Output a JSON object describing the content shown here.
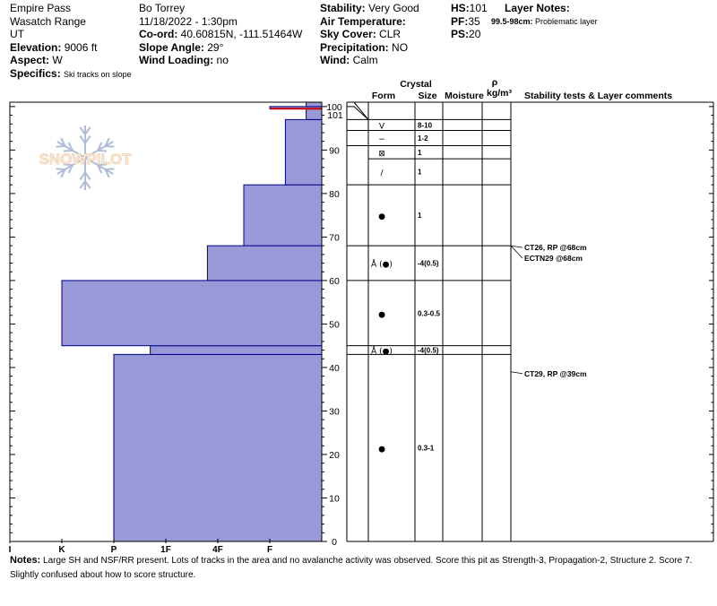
{
  "header": {
    "location": "Empire Pass",
    "range": "Wasatch Range",
    "state": "UT",
    "elevation_label": "Elevation:",
    "elevation": "9006 ft",
    "aspect_label": "Aspect:",
    "aspect": "W",
    "specifics_label": "Specifics:",
    "specifics": "Ski tracks on slope",
    "observer": "Bo Torrey",
    "datetime": "11/18/2022 - 1:30pm",
    "coord_label": "Co-ord:",
    "coord": "40.60815N, -111.51464W",
    "slope_label": "Slope Angle:",
    "slope": "29°",
    "wind_loading_label": "Wind Loading:",
    "wind_loading": "no",
    "stability_label": "Stability:",
    "stability": "Very Good",
    "air_temp_label": "Air Temperature:",
    "air_temp": "",
    "sky_label": "Sky Cover:",
    "sky": "CLR",
    "precip_label": "Precipitation:",
    "precip": "NO",
    "wind_label": "Wind:",
    "wind": "Calm",
    "hs_label": "HS:",
    "hs": "101",
    "pf_label": "PF:",
    "pf": "35",
    "ps_label": "PS:",
    "ps": "20",
    "layer_notes_label": "Layer Notes:",
    "layer_note_range": "99.5-98cm:",
    "layer_note_text": "Problematic layer"
  },
  "logo_text": "SNOWPILOT",
  "columns": {
    "crystal": "Crystal",
    "form": "Form",
    "size": "Size",
    "moisture": "Moisture",
    "rho": "ρ",
    "density_unit": "kg/m³",
    "comments": "Stability tests & Layer comments"
  },
  "notes": {
    "label": "Notes:",
    "text": "Large SH and NSF/RR present. Lots of tracks in the area and no avalanche activity was observed. Score this pit as Strength-3, Propagation-2, Structure 2. Score 7. Slightly confused about how to score structure."
  },
  "chart_data": {
    "type": "bar",
    "orientation": "horizontal",
    "x_categories": [
      "I",
      "K",
      "P",
      "1F",
      "4F",
      "F"
    ],
    "y_ticks": [
      0,
      10,
      20,
      30,
      40,
      50,
      60,
      70,
      80,
      90,
      100
    ],
    "ylim": [
      0,
      101
    ],
    "hardness_units": "hand hardness index (F=1, 4F=2, 1F=3, P=4, K=5, I=6)",
    "layers": [
      {
        "bottom": 0,
        "top": 43,
        "hardness": 4
      },
      {
        "bottom": 43,
        "top": 45,
        "hardness": 3.3
      },
      {
        "bottom": 45,
        "top": 60,
        "hardness": 5
      },
      {
        "bottom": 60,
        "top": 68,
        "hardness": 2.2
      },
      {
        "bottom": 68,
        "top": 82,
        "hardness": 1.5
      },
      {
        "bottom": 82,
        "top": 97,
        "hardness": 0.7
      },
      {
        "bottom": 97,
        "top": 99.5,
        "hardness": 0.3
      },
      {
        "bottom": 99.5,
        "top": 100,
        "hardness": 1
      },
      {
        "bottom": 100,
        "top": 101,
        "hardness": 0.3
      }
    ],
    "marker_layer": 99.5,
    "top_label": "101",
    "boundaries": [
      0,
      43,
      45,
      60,
      68,
      82,
      91,
      94.5,
      97,
      100,
      101
    ],
    "profile_layers": [
      {
        "bottom": 94.5,
        "top": 97,
        "form": "V",
        "size": "8-10"
      },
      {
        "bottom": 91,
        "top": 94.5,
        "form": "−",
        "size": "1-2"
      },
      {
        "bottom": 88,
        "top": 91,
        "form": "⊠",
        "size": "1"
      },
      {
        "bottom": 82,
        "top": 88,
        "form": "/",
        "size": "1"
      },
      {
        "bottom": 68,
        "top": 82,
        "form": "●",
        "size": "1"
      },
      {
        "bottom": 60,
        "top": 68,
        "form": "Å (●)",
        "size": "-4(0.5)"
      },
      {
        "bottom": 45,
        "top": 60,
        "form": "●",
        "size": "0.3-0.5"
      },
      {
        "bottom": 43,
        "top": 45,
        "form": "Å (●)",
        "size": "-4(0.5)"
      },
      {
        "bottom": 0,
        "top": 43,
        "form": "●",
        "size": "0.3-1"
      }
    ],
    "tests": [
      {
        "depth": 68,
        "label": "CT26, RP @68cm"
      },
      {
        "depth": 68,
        "label": "ECTN29 @68cm"
      },
      {
        "depth": 39,
        "label": "CT29, RP @39cm"
      }
    ]
  },
  "colors": {
    "bar_fill": "#9999d8",
    "bar_stroke": "#00008b",
    "marker_red": "#cc0000"
  }
}
